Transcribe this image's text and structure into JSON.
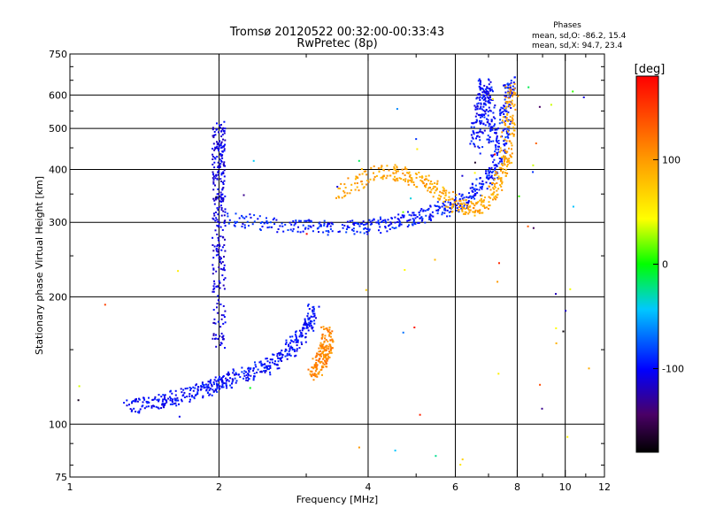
{
  "chart_data": {
    "type": "scatter",
    "title": "Tromsø 20120522 00:32:00-00:33:43",
    "subtitle": "RwPretec (8p)",
    "xlabel": "Frequency [MHz]",
    "ylabel": "Stationary phase Virtual Height [km]",
    "x_scale": "log",
    "y_scale": "log",
    "xlim": [
      1,
      12
    ],
    "ylim": [
      75,
      750
    ],
    "x_ticks": [
      1,
      2,
      4,
      6,
      8,
      10,
      12
    ],
    "x_tick_labels": [
      "1",
      "2",
      "4",
      "6",
      "8",
      "10",
      "12"
    ],
    "x_grid": [
      2,
      4,
      6,
      8,
      10
    ],
    "y_ticks": [
      75,
      100,
      200,
      300,
      400,
      500,
      600,
      750
    ],
    "y_tick_labels": [
      "75",
      "100",
      "200",
      "300",
      "400",
      "500",
      "600",
      "750"
    ],
    "y_grid": [
      100,
      200,
      300,
      400,
      500,
      600
    ],
    "grid": true,
    "legend": {
      "title": "Phases",
      "lines": [
        "mean, sd,O: -86.2, 15.4",
        "mean, sd,X:  94.7, 23.4"
      ]
    },
    "colorbar": {
      "label": "[deg]",
      "range": [
        -180,
        180
      ],
      "ticks": [
        100,
        0,
        -100
      ],
      "tick_labels": [
        "100",
        "0",
        "-100"
      ],
      "colormap": "rainbow (black-purple-blue-cyan-green-yellow-orange-red)"
    },
    "traces": [
      {
        "desc": "lower trace",
        "phase": -100,
        "points": [
          [
            1.32,
            110
          ],
          [
            1.45,
            112
          ],
          [
            1.6,
            115
          ],
          [
            1.75,
            118
          ],
          [
            1.9,
            122
          ],
          [
            2.0,
            125
          ],
          [
            2.1,
            128
          ],
          [
            2.3,
            132
          ],
          [
            2.5,
            137
          ],
          [
            2.7,
            145
          ],
          [
            2.85,
            155
          ],
          [
            3.0,
            168
          ],
          [
            3.1,
            185
          ]
        ]
      },
      {
        "desc": "low-frequency vertical cluster",
        "phase": -110,
        "points": [
          [
            2.0,
            150
          ],
          [
            2.0,
            200
          ],
          [
            2.0,
            250
          ],
          [
            2.0,
            300
          ],
          [
            2.0,
            350
          ],
          [
            2.0,
            400
          ],
          [
            2.0,
            450
          ],
          [
            2.0,
            500
          ]
        ]
      },
      {
        "desc": "upper trace",
        "phase": -95,
        "points": [
          [
            2.1,
            305
          ],
          [
            2.5,
            298
          ],
          [
            3.0,
            292
          ],
          [
            3.5,
            290
          ],
          [
            4.0,
            293
          ],
          [
            4.5,
            300
          ],
          [
            5.0,
            308
          ],
          [
            5.5,
            318
          ],
          [
            6.0,
            330
          ],
          [
            6.5,
            350
          ],
          [
            7.0,
            380
          ],
          [
            7.3,
            420
          ],
          [
            7.5,
            480
          ],
          [
            7.6,
            560
          ],
          [
            7.7,
            640
          ]
        ]
      },
      {
        "desc": "upper trace X component",
        "phase": 95,
        "points": [
          [
            3.5,
            350
          ],
          [
            4.0,
            390
          ],
          [
            4.5,
            395
          ],
          [
            5.0,
            380
          ],
          [
            5.5,
            360
          ],
          [
            6.0,
            330
          ],
          [
            6.5,
            320
          ],
          [
            7.0,
            335
          ],
          [
            7.4,
            380
          ],
          [
            7.6,
            430
          ],
          [
            7.7,
            520
          ],
          [
            7.8,
            620
          ]
        ]
      },
      {
        "desc": "X component cluster near 3.2 MHz",
        "phase": 110,
        "points": [
          [
            3.1,
            130
          ],
          [
            3.2,
            140
          ],
          [
            3.25,
            145
          ],
          [
            3.3,
            150
          ],
          [
            3.3,
            165
          ]
        ]
      },
      {
        "desc": "high frequency cusp",
        "phase": -100,
        "points": [
          [
            6.6,
            450
          ],
          [
            6.7,
            520
          ],
          [
            6.8,
            580
          ],
          [
            6.9,
            640
          ],
          [
            7.0,
            560
          ],
          [
            7.1,
            480
          ]
        ]
      }
    ]
  }
}
